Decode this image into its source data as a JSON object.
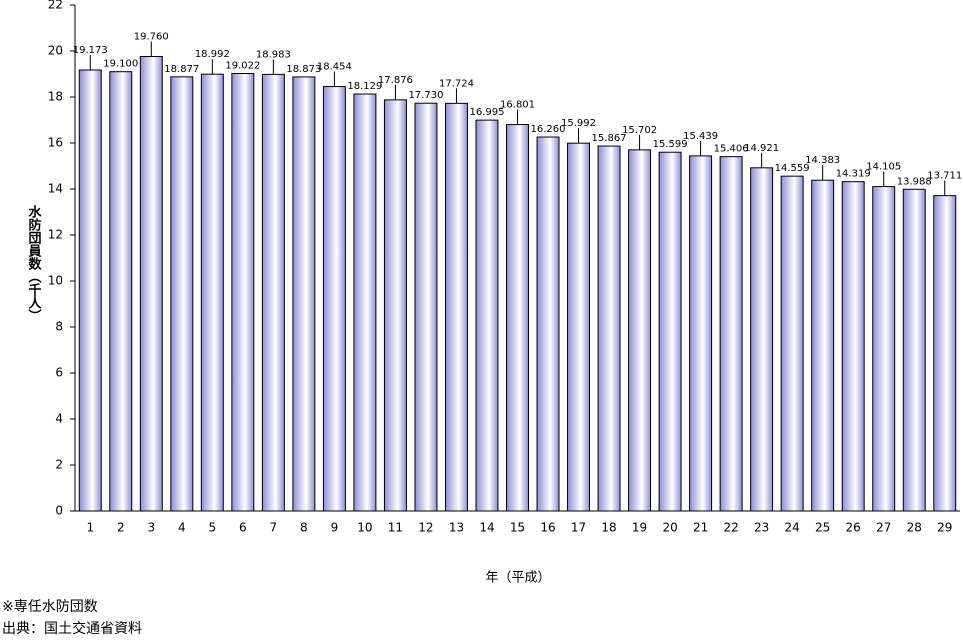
{
  "chart_data": {
    "type": "bar",
    "categories": [
      "1",
      "2",
      "3",
      "4",
      "5",
      "6",
      "7",
      "8",
      "9",
      "10",
      "11",
      "12",
      "13",
      "14",
      "15",
      "16",
      "17",
      "18",
      "19",
      "20",
      "21",
      "22",
      "23",
      "24",
      "25",
      "26",
      "27",
      "28",
      "29"
    ],
    "values": [
      19.173,
      19.1,
      19.76,
      18.877,
      18.992,
      19.022,
      18.983,
      18.873,
      18.454,
      18.129,
      17.876,
      17.73,
      17.724,
      16.995,
      16.801,
      16.26,
      15.992,
      15.867,
      15.702,
      15.599,
      15.439,
      15.406,
      14.921,
      14.559,
      14.383,
      14.319,
      14.105,
      13.988,
      13.711
    ],
    "value_labels": [
      "19.173",
      "19.100",
      "19.760",
      "18.877",
      "18.992",
      "19.022",
      "18.983",
      "18.873",
      "18.454",
      "18.129",
      "17.876",
      "17.730",
      "17.724",
      "16.995",
      "16.801",
      "16.260",
      "15.992",
      "15.867",
      "15.702",
      "15.599",
      "15.439",
      "15.406",
      "14.921",
      "14.559",
      "14.383",
      "14.319",
      "14.105",
      "13.988",
      "13.711"
    ],
    "color": "#8f8fd6",
    "y_label": "水防団員数（千人）",
    "x_label": "年（平成）",
    "ylim": [
      0,
      22
    ],
    "yticks": [
      0,
      2,
      4,
      6,
      8,
      10,
      12,
      14,
      16,
      18,
      20,
      22
    ],
    "notes": [
      "※専任水防団数",
      "出典：国土交通省資料"
    ]
  }
}
